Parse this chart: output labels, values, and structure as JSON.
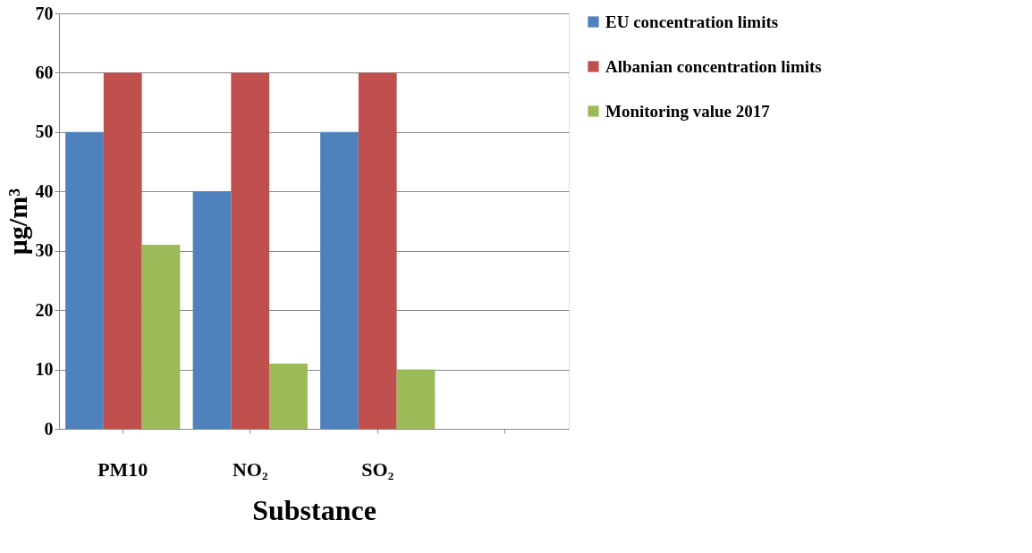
{
  "chart_data": {
    "type": "bar",
    "xlabel": "Substance",
    "ylabel": "μg/m³",
    "categories": [
      "PM10",
      "NO₂",
      "SO₂",
      null
    ],
    "series": [
      {
        "name": "EU concentration limits",
        "color": "#4f81bd",
        "values": [
          50,
          40,
          50,
          null
        ]
      },
      {
        "name": "Albanian concentration limits",
        "color": "#c0504d",
        "values": [
          60,
          60,
          60,
          null
        ]
      },
      {
        "name": "Monitoring value 2017",
        "color": "#9bbb59",
        "values": [
          31,
          11,
          10,
          null
        ]
      }
    ],
    "ylim": [
      0,
      70
    ],
    "yticks": [
      0,
      10,
      20,
      30,
      40,
      50,
      60,
      70
    ],
    "grid": "y",
    "legend": "right"
  }
}
